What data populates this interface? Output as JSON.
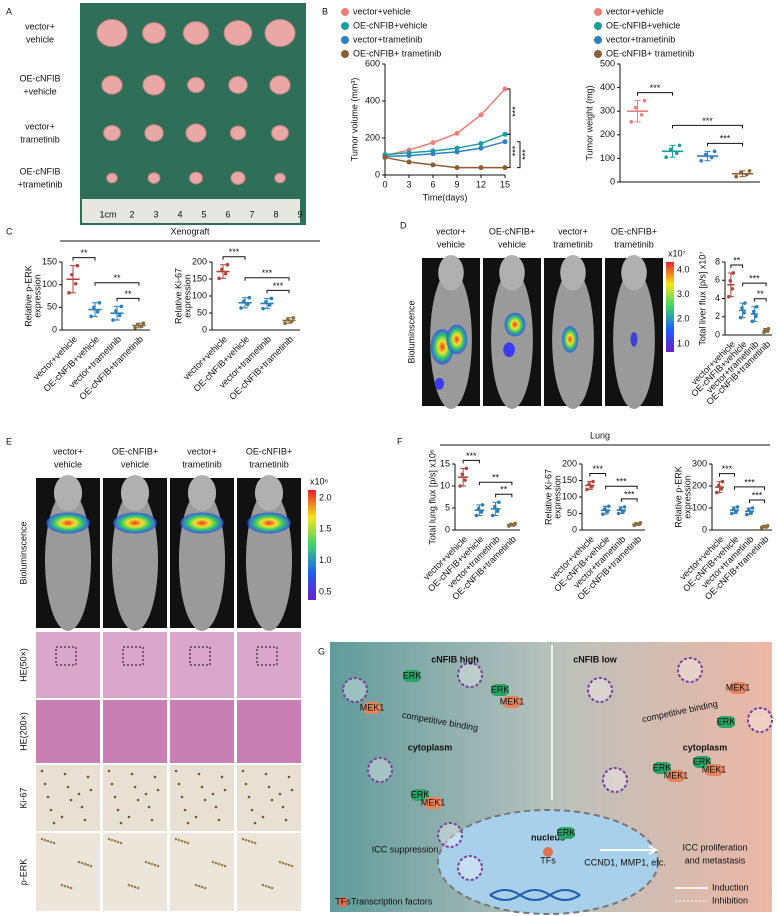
{
  "panel_labels": [
    "A",
    "B",
    "C",
    "D",
    "E",
    "F",
    "G"
  ],
  "panel_a": {
    "rows": [
      [
        "vector+",
        "vehicle"
      ],
      [
        "OE-cNFIB",
        "+vehicle"
      ],
      [
        "vector+",
        "trametinib"
      ],
      [
        "OE-cNFIB",
        "+trametinib"
      ]
    ],
    "ruler": [
      "1cm",
      "2",
      "3",
      "4",
      "5",
      "6",
      "7",
      "8",
      "9"
    ]
  },
  "chart_data": [
    {
      "type": "line",
      "x": [
        0,
        3,
        6,
        9,
        12,
        15
      ],
      "xlim": [
        0,
        15
      ],
      "xticks": [
        0,
        3,
        6,
        9,
        12,
        15
      ],
      "xlabel": "Time(days)",
      "ylabel": [
        "Tumor volume (mm³)"
      ],
      "ylim": [
        0,
        600
      ],
      "yticks": [
        0,
        200,
        400,
        600
      ],
      "series": [
        {
          "name": "vector+vehicle",
          "color": "#ee7f78",
          "values": [
            105,
            135,
            175,
            225,
            325,
            465
          ]
        },
        {
          "name": "OE-cNFIB+vehicle",
          "color": "#1a9f9c",
          "values": [
            110,
            120,
            130,
            145,
            170,
            220
          ]
        },
        {
          "name": "vector+trametinib",
          "color": "#2f80c0",
          "values": [
            100,
            105,
            115,
            125,
            145,
            180
          ]
        },
        {
          "name": "OE-cNFIB+ trametinib",
          "color": "#8b5e34",
          "values": [
            95,
            70,
            55,
            40,
            40,
            40
          ]
        }
      ],
      "significance": [
        "***",
        "***",
        "***"
      ]
    },
    {
      "type": "dot",
      "categories": [
        null,
        null,
        null,
        null
      ],
      "legend": [
        "vector+vehicle",
        "OE-cNFIB+vehicle",
        "vector+trametinib",
        "OE-cNFIB+ trametinib"
      ],
      "colors": [
        "#ee7f78",
        "#1a9f9c",
        "#2f80c0",
        "#8b5e34"
      ],
      "values": [
        300,
        130,
        110,
        35
      ],
      "errors": [
        45,
        25,
        20,
        12
      ],
      "ylabel": [
        "Tumor weight (mg)"
      ],
      "ylim": [
        0,
        500
      ],
      "yticks": [
        0,
        100,
        200,
        300,
        400,
        500
      ],
      "significance": [
        "***",
        "***",
        "***"
      ]
    },
    {
      "type": "dot",
      "categories": [
        "vector+vehicle",
        "OE-cNFIB+vehicle",
        "vector+trametinib",
        "OE-cNFIB+trametinib"
      ],
      "colors": [
        "#b5453c",
        "#2d7fb8",
        "#2d7fb8",
        "#8b6d3c"
      ],
      "values": [
        112,
        45,
        37,
        10
      ],
      "errors": [
        30,
        15,
        15,
        5
      ],
      "ylabel": [
        "Relative p-ERK",
        "expression"
      ],
      "ylim": [
        0,
        150
      ],
      "yticks": [
        0,
        50,
        100,
        150
      ],
      "significance": [
        "**",
        "**",
        "**"
      ]
    },
    {
      "type": "dot",
      "categories": [
        "vector+vehicle",
        "OE-cNFIB+vehicle",
        "vector+trametinib",
        "OE-cNFIB+trametinib"
      ],
      "colors": [
        "#b5453c",
        "#2d7fb8",
        "#2d7fb8",
        "#8b6d3c"
      ],
      "values": [
        172,
        80,
        78,
        28
      ],
      "errors": [
        20,
        15,
        15,
        8
      ],
      "ylabel": [
        "Relative Ki-67",
        "expression"
      ],
      "ylim": [
        0,
        200
      ],
      "yticks": [
        0,
        50,
        100,
        150,
        200
      ],
      "significance": [
        "***",
        "***",
        "***"
      ]
    },
    {
      "type": "dot",
      "categories": [
        "vector+vehicle",
        "OE-cNFIB+vehicle",
        "vector+trametinib",
        "OE-cNFIB+trametinib"
      ],
      "colors": [
        "#b5453c",
        "#2d7fb8",
        "#2d7fb8",
        "#8b6d3c"
      ],
      "values": [
        5.5,
        2.7,
        2.3,
        0.5
      ],
      "errors": [
        1.3,
        0.8,
        0.8,
        0.2
      ],
      "ylabel": [
        "Total liver flux [p/s] x10⁷"
      ],
      "ylim": [
        0,
        8
      ],
      "yticks": [
        0,
        2,
        4,
        6,
        8
      ],
      "significance": [
        "**",
        "***",
        "**"
      ]
    },
    {
      "type": "dot",
      "categories": [
        "vector+vehicle",
        "OE-cNFIB+vehicle",
        "vector+trametinib",
        "OE-cNFIB+trametinib"
      ],
      "colors": [
        "#b5453c",
        "#2d7fb8",
        "#2d7fb8",
        "#8b6d3c"
      ],
      "values": [
        12,
        4.5,
        4.8,
        1.2
      ],
      "errors": [
        2,
        1.2,
        1.5,
        0.3
      ],
      "ylabel": [
        "Total lung flux [p/s] x10⁶"
      ],
      "ylim": [
        0,
        15
      ],
      "yticks": [
        0,
        5,
        10,
        15
      ],
      "significance": [
        "***",
        "**",
        "**"
      ]
    },
    {
      "type": "dot",
      "categories": [
        "vector+vehicle",
        "OE-cNFIB+vehicle",
        "vector+trametinib",
        "OE-cNFIB+trametinib"
      ],
      "colors": [
        "#b5453c",
        "#2d7fb8",
        "#2d7fb8",
        "#8b6d3c"
      ],
      "values": [
        135,
        60,
        60,
        18
      ],
      "errors": [
        12,
        12,
        10,
        4
      ],
      "ylabel": [
        "Relative Ki-67",
        "expression"
      ],
      "ylim": [
        0,
        200
      ],
      "yticks": [
        0,
        50,
        100,
        150,
        200
      ],
      "significance": [
        "***",
        "***",
        "***"
      ]
    },
    {
      "type": "dot",
      "categories": [
        "vector+vehicle",
        "OE-cNFIB+vehicle",
        "vector+trametinib",
        "OE-cNFIB+trametinib"
      ],
      "colors": [
        "#b5453c",
        "#2d7fb8",
        "#2d7fb8",
        "#8b6d3c"
      ],
      "values": [
        195,
        90,
        85,
        15
      ],
      "errors": [
        25,
        15,
        15,
        5
      ],
      "ylabel": [
        "Relative p-ERK",
        "expression"
      ],
      "ylim": [
        0,
        300
      ],
      "yticks": [
        0,
        100,
        200,
        300
      ],
      "significance": [
        "***",
        "***",
        "***"
      ]
    }
  ],
  "panel_c_title": "Xenograft",
  "panel_f_title": "Lung",
  "panel_d": {
    "columns": [
      [
        "vector+",
        "vehicle"
      ],
      [
        "OE-cNFIB+",
        "vehicle"
      ],
      [
        "vector+",
        "trametinib"
      ],
      [
        "OE-cNFIB+",
        "trametinib"
      ]
    ],
    "row_label": "Bioluminscence",
    "colorbar": {
      "unit": "x10⁷",
      "ticks": [
        "4.0",
        "3.0",
        "2.0",
        "1.0"
      ]
    }
  },
  "panel_e": {
    "columns": [
      [
        "vector+",
        "vehicle"
      ],
      [
        "OE-cNFIB+",
        "vehicle"
      ],
      [
        "vector+",
        "trametinib"
      ],
      [
        "OE-cNFIB+",
        "trametinib"
      ]
    ],
    "rows": [
      "Bioluminscence",
      "HE(50×)",
      "HE(200×)",
      "Ki-67",
      "p-ERK"
    ],
    "colorbar": {
      "unit": "x10⁶",
      "ticks": [
        "2.0",
        "1.5",
        "1.0",
        "0.5"
      ]
    }
  },
  "panel_g": {
    "title_left": "cNFIB high",
    "title_right": "cNFIB low",
    "cytoplasm": [
      "cytoplasm",
      "cytoplasm"
    ],
    "binding": [
      "competitive binding",
      "competitive binding"
    ],
    "nucleus": "nucleus",
    "suppression": "ICC suppression",
    "targets": "CCND1, MMP1, etc.",
    "outcome": [
      "ICC proliferation",
      "and metastasis"
    ],
    "tfs": [
      "TFs",
      "TFs"
    ],
    "legend": [
      "Transcription factors",
      "Induction",
      "Inhibition"
    ],
    "proteins": [
      "ERK",
      "MEK1",
      "ERK",
      "MEK1",
      "ERK",
      "MEK1",
      "MEK1",
      "ERK",
      "ERK",
      "MEK1",
      "ERK",
      "MEK1",
      "ERK"
    ]
  }
}
